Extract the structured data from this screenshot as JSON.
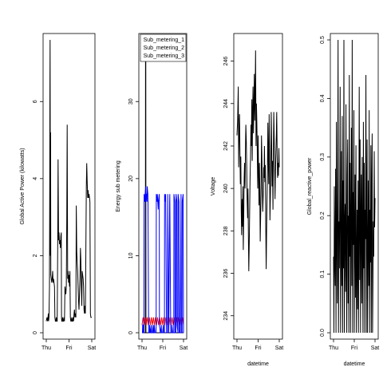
{
  "chart_data": [
    {
      "type": "line",
      "ylabel": "Global Active Power (kilowatts)",
      "xlabel": "",
      "x_ticks": [
        "Thu",
        "Fri",
        "Sat"
      ],
      "y_ticks": [
        0,
        2,
        4,
        6
      ],
      "ylim": [
        0,
        7.6
      ],
      "colors": [
        "#000000"
      ],
      "series": [
        {
          "x": [
            0.0,
            0.03,
            0.06,
            0.09,
            0.1,
            0.12,
            0.14,
            0.15,
            0.16,
            0.17,
            0.18,
            0.19,
            0.2,
            0.22,
            0.24,
            0.26,
            0.28,
            0.3,
            0.32,
            0.34,
            0.36,
            0.38,
            0.4,
            0.42,
            0.44,
            0.46,
            0.48,
            0.5,
            0.52,
            0.54,
            0.56,
            0.58,
            0.6,
            0.62,
            0.64,
            0.66,
            0.67,
            0.68,
            0.7,
            0.72,
            0.74,
            0.76,
            0.78,
            0.8,
            0.82,
            0.84,
            0.86,
            0.88,
            0.9,
            0.92,
            0.94,
            0.96,
            0.98,
            1.0,
            1.02,
            1.04,
            1.06,
            1.08,
            1.1,
            1.12,
            1.14,
            1.16,
            1.18,
            1.2,
            1.22,
            1.24,
            1.26,
            1.28,
            1.3,
            1.32,
            1.34,
            1.36,
            1.38,
            1.4,
            1.42,
            1.44,
            1.46,
            1.48,
            1.5,
            1.52,
            1.54,
            1.56,
            1.58,
            1.6,
            1.62,
            1.64,
            1.66,
            1.68,
            1.7,
            1.72,
            1.74,
            1.76,
            1.78,
            1.8,
            1.82,
            1.84,
            1.86,
            1.88,
            1.9,
            1.92,
            1.94,
            1.96,
            1.98,
            2.0
          ],
          "values": [
            0.3,
            0.4,
            0.3,
            0.5,
            0.3,
            0.4,
            1.2,
            3.5,
            6.5,
            7.6,
            2.0,
            5.2,
            1.5,
            1.4,
            1.3,
            1.4,
            1.6,
            1.3,
            1.4,
            1.3,
            1.2,
            0.4,
            0.3,
            0.3,
            0.4,
            0.3,
            0.3,
            2.2,
            4.5,
            2.4,
            2.6,
            2.3,
            2.4,
            2.2,
            2.5,
            2.6,
            0.4,
            0.3,
            0.3,
            0.4,
            0.3,
            0.3,
            0.4,
            0.3,
            1.2,
            1.1,
            1.0,
            1.2,
            3.0,
            5.4,
            1.4,
            1.6,
            1.3,
            1.5,
            1.2,
            1.6,
            0.4,
            0.3,
            0.3,
            0.4,
            0.3,
            0.3,
            0.4,
            0.3,
            0.5,
            0.6,
            0.4,
            0.5,
            0.4,
            3.3,
            2.1,
            1.8,
            1.6,
            1.2,
            0.8,
            0.6,
            1.0,
            1.4,
            2.2,
            1.9,
            1.2,
            0.7,
            1.6,
            1.5,
            1.4,
            1.2,
            0.6,
            0.5,
            0.7,
            0.5,
            2.1,
            3.8,
            4.4,
            3.9,
            3.5,
            3.7,
            3.5,
            3.6,
            3.5,
            3.4,
            0.5,
            0.4,
            0.4,
            0.4
          ]
        }
      ]
    },
    {
      "type": "line",
      "ylabel": "Energy sub metering",
      "xlabel": "",
      "x_ticks": [
        "Thu",
        "Fri",
        "Sat"
      ],
      "y_ticks": [
        0,
        10,
        20,
        30
      ],
      "ylim": [
        0,
        38
      ],
      "legend": {
        "placement": "top-right",
        "entries": [
          "Sub_metering_1",
          "Sub_metering_2",
          "Sub_metering_3"
        ]
      },
      "series": [
        {
          "name": "Sub_metering_1",
          "color": "#000000",
          "x": [
            0.0,
            0.15,
            0.16,
            0.17,
            0.18,
            0.19,
            0.2,
            0.4,
            0.7,
            0.85,
            1.0,
            1.2,
            1.5,
            1.7,
            2.0
          ],
          "values": [
            0,
            0,
            0,
            38,
            38,
            0,
            0,
            0,
            0,
            0,
            0,
            0,
            0,
            0,
            0
          ]
        },
        {
          "name": "Sub_metering_2",
          "color": "#ff0000",
          "x": [
            0.0,
            0.05,
            0.1,
            0.15,
            0.2,
            0.25,
            0.3,
            0.35,
            0.4,
            0.45,
            0.5,
            0.55,
            0.6,
            0.65,
            0.7,
            0.75,
            0.8,
            0.85,
            0.9,
            0.95,
            1.0,
            1.05,
            1.1,
            1.15,
            1.2,
            1.25,
            1.3,
            1.35,
            1.4,
            1.45,
            1.5,
            1.55,
            1.6,
            1.65,
            1.7,
            1.75,
            1.8,
            1.85,
            1.9,
            1.95,
            2.0
          ],
          "values": [
            1,
            2,
            1,
            2,
            1,
            2,
            1,
            2,
            1,
            2,
            1,
            2,
            1,
            2,
            1,
            2,
            1,
            2,
            1,
            2,
            1,
            2,
            1,
            2,
            1,
            2,
            1,
            2,
            1,
            2,
            1,
            2,
            1,
            2,
            1,
            2,
            1,
            2,
            1,
            2,
            1
          ]
        },
        {
          "name": "Sub_metering_3",
          "color": "#0000ff",
          "x": [
            0.0,
            0.02,
            0.03,
            0.05,
            0.06,
            0.09,
            0.1,
            0.14,
            0.15,
            0.18,
            0.19,
            0.22,
            0.23,
            0.24,
            0.25,
            0.28,
            0.29,
            0.32,
            0.33,
            0.36,
            0.37,
            0.4,
            0.41,
            0.45,
            0.46,
            0.49,
            0.5,
            0.54,
            0.55,
            0.58,
            0.59,
            0.63,
            0.64,
            0.68,
            0.69,
            0.73,
            0.74,
            0.78,
            0.79,
            0.83,
            0.84,
            0.88,
            0.89,
            0.93,
            0.94,
            0.98,
            0.99,
            1.03,
            1.04,
            1.08,
            1.09,
            1.13,
            1.14,
            1.18,
            1.19,
            1.23,
            1.24,
            1.28,
            1.29,
            1.33,
            1.34,
            1.38,
            1.39,
            1.43,
            1.44,
            1.48,
            1.49,
            1.53,
            1.54,
            1.58,
            1.59,
            1.63,
            1.64,
            1.68,
            1.69,
            1.73,
            1.74,
            1.78,
            1.79,
            1.83,
            1.84,
            1.88,
            1.89,
            1.93,
            1.94,
            1.98,
            2.0
          ],
          "values": [
            0,
            0,
            1,
            1,
            0,
            0,
            18,
            17,
            18,
            19,
            17,
            18,
            18,
            17,
            19,
            18,
            17,
            0,
            0,
            0,
            1,
            0,
            0,
            1,
            0,
            0,
            0,
            1,
            0,
            0,
            1,
            0,
            0,
            0,
            18,
            17,
            18,
            16,
            17,
            18,
            1,
            0,
            0,
            1,
            0,
            0,
            0,
            1,
            0,
            0,
            18,
            17,
            18,
            1,
            0,
            0,
            18,
            1,
            0,
            17,
            18,
            1,
            0,
            0,
            1,
            0,
            0,
            0,
            18,
            17,
            0,
            0,
            18,
            17,
            1,
            0,
            18,
            17,
            0,
            0,
            1,
            18,
            0,
            0,
            17,
            18,
            0
          ]
        }
      ]
    },
    {
      "type": "line",
      "ylabel": "Voltage",
      "xlabel": "datetime",
      "x_ticks": [
        "Thu",
        "Fri",
        "Sat"
      ],
      "y_ticks": [
        234,
        236,
        238,
        240,
        242,
        244,
        246
      ],
      "ylim": [
        233.2,
        247.0
      ],
      "colors": [
        "#000000"
      ],
      "series": [
        {
          "x": [
            0.0,
            0.03,
            0.06,
            0.08,
            0.1,
            0.12,
            0.14,
            0.16,
            0.18,
            0.2,
            0.22,
            0.24,
            0.26,
            0.28,
            0.3,
            0.32,
            0.34,
            0.36,
            0.38,
            0.4,
            0.42,
            0.44,
            0.46,
            0.48,
            0.5,
            0.52,
            0.54,
            0.56,
            0.58,
            0.6,
            0.62,
            0.64,
            0.66,
            0.68,
            0.7,
            0.72,
            0.74,
            0.76,
            0.78,
            0.8,
            0.82,
            0.84,
            0.86,
            0.88,
            0.9,
            0.92,
            0.94,
            0.96,
            0.98,
            1.0,
            1.02,
            1.04,
            1.06,
            1.08,
            1.1,
            1.12,
            1.14,
            1.16,
            1.18,
            1.2,
            1.22,
            1.24,
            1.26,
            1.28,
            1.3,
            1.32,
            1.34,
            1.36,
            1.38,
            1.4,
            1.42,
            1.44,
            1.46,
            1.48,
            1.5,
            1.52,
            1.54,
            1.56,
            1.58,
            1.6,
            1.62,
            1.64,
            1.66,
            1.68,
            1.7,
            1.72,
            1.74,
            1.76,
            1.78,
            1.8,
            1.82,
            1.84,
            1.86,
            1.88,
            1.9,
            1.92,
            1.94,
            1.96,
            1.98,
            2.0
          ],
          "values": [
            242.5,
            243.2,
            244.8,
            241.0,
            242.6,
            243.5,
            241.8,
            240.2,
            241.5,
            239.0,
            237.8,
            239.5,
            238.2,
            240.1,
            237.1,
            238.8,
            240.5,
            241.2,
            240.0,
            241.8,
            243.0,
            242.2,
            241.0,
            239.5,
            238.6,
            240.0,
            237.8,
            236.1,
            237.5,
            239.0,
            240.5,
            241.5,
            243.0,
            242.0,
            244.2,
            241.3,
            243.5,
            244.8,
            242.6,
            243.9,
            245.4,
            243.2,
            244.5,
            246.5,
            242.0,
            244.0,
            243.1,
            241.8,
            240.0,
            242.5,
            241.0,
            239.2,
            241.2,
            240.0,
            237.5,
            238.8,
            240.1,
            242.5,
            241.3,
            239.8,
            238.9,
            239.7,
            241.0,
            240.5,
            242.0,
            240.3,
            241.1,
            238.5,
            236.2,
            237.9,
            239.3,
            240.8,
            243.1,
            241.6,
            240.2,
            243.5,
            241.8,
            238.5,
            239.7,
            240.8,
            243.6,
            242.0,
            240.1,
            241.3,
            239.0,
            241.6,
            243.6,
            242.4,
            241.0,
            239.5,
            240.8,
            241.7,
            242.5,
            243.6,
            241.5,
            240.5,
            241.2,
            240.6,
            241.9,
            241.0
          ]
        }
      ]
    },
    {
      "type": "line",
      "ylabel": "Global_reactive_power",
      "xlabel": "datetime",
      "x_ticks": [
        "Thu",
        "Fri",
        "Sat"
      ],
      "y_ticks": [
        0.0,
        0.1,
        0.2,
        0.3,
        0.4,
        0.5
      ],
      "ylim": [
        0,
        0.5
      ],
      "colors": [
        "#000000"
      ],
      "series": [
        {
          "x": [
            0.0,
            0.02,
            0.04,
            0.06,
            0.08,
            0.1,
            0.12,
            0.14,
            0.16,
            0.18,
            0.2,
            0.22,
            0.24,
            0.26,
            0.28,
            0.3,
            0.32,
            0.34,
            0.36,
            0.38,
            0.4,
            0.42,
            0.44,
            0.46,
            0.48,
            0.5,
            0.52,
            0.54,
            0.56,
            0.58,
            0.6,
            0.62,
            0.64,
            0.66,
            0.68,
            0.7,
            0.72,
            0.74,
            0.76,
            0.78,
            0.8,
            0.82,
            0.84,
            0.86,
            0.88,
            0.9,
            0.92,
            0.94,
            0.96,
            0.98,
            1.0,
            1.02,
            1.04,
            1.06,
            1.08,
            1.1,
            1.12,
            1.14,
            1.16,
            1.18,
            1.2,
            1.22,
            1.24,
            1.26,
            1.28,
            1.3,
            1.32,
            1.34,
            1.36,
            1.38,
            1.4,
            1.42,
            1.44,
            1.46,
            1.48,
            1.5,
            1.52,
            1.54,
            1.56,
            1.58,
            1.6,
            1.62,
            1.64,
            1.66,
            1.68,
            1.7,
            1.72,
            1.74,
            1.76,
            1.78,
            1.8,
            1.82,
            1.84,
            1.86,
            1.88,
            1.9,
            1.92,
            1.94,
            1.96,
            1.98,
            2.0
          ],
          "values": [
            0.13,
            0.0,
            0.25,
            0.12,
            0.08,
            0.28,
            0.0,
            0.36,
            0.15,
            0.05,
            0.24,
            0.5,
            0.0,
            0.19,
            0.11,
            0.23,
            0.42,
            0.0,
            0.14,
            0.31,
            0.08,
            0.37,
            0.0,
            0.26,
            0.11,
            0.5,
            0.0,
            0.18,
            0.22,
            0.07,
            0.39,
            0.12,
            0.0,
            0.27,
            0.33,
            0.05,
            0.2,
            0.0,
            0.44,
            0.13,
            0.29,
            0.0,
            0.18,
            0.35,
            0.08,
            0.5,
            0.0,
            0.24,
            0.15,
            0.38,
            0.0,
            0.14,
            0.27,
            0.06,
            0.32,
            0.0,
            0.11,
            0.21,
            0.04,
            0.26,
            0.0,
            0.17,
            0.42,
            0.09,
            0.33,
            0.0,
            0.19,
            0.27,
            0.05,
            0.3,
            0.14,
            0.0,
            0.36,
            0.11,
            0.29,
            0.0,
            0.21,
            0.16,
            0.44,
            0.0,
            0.22,
            0.33,
            0.0,
            0.15,
            0.26,
            0.08,
            0.38,
            0.0,
            0.21,
            0.12,
            0.32,
            0.0,
            0.24,
            0.34,
            0.0,
            0.09,
            0.19,
            0.13,
            0.31,
            0.18,
            0.23
          ]
        }
      ]
    }
  ]
}
